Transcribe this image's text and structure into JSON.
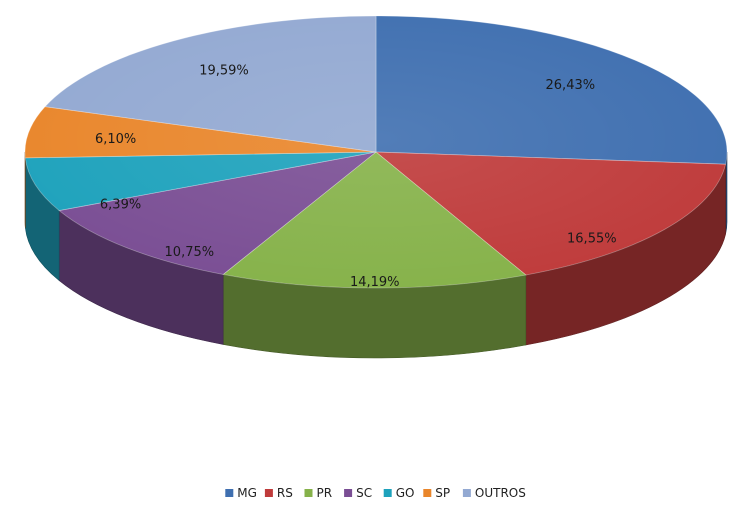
{
  "chart_data": {
    "type": "pie",
    "style": "3d",
    "categories": [
      "MG",
      "RS",
      "PR",
      "SC",
      "GO",
      "SP",
      "OUTROS"
    ],
    "values": [
      26.43,
      16.55,
      14.19,
      10.75,
      6.39,
      6.1,
      19.59
    ],
    "labels": [
      "26,43%",
      "16,55%",
      "14,19%",
      "10,75%",
      "6,39%",
      "6,10%",
      "19,59%"
    ],
    "colors": [
      "#3f6fb0",
      "#bf3b3b",
      "#86b24a",
      "#7a4e94",
      "#1ea2bc",
      "#e9862b",
      "#93a9d2"
    ],
    "legend_position": "bottom",
    "title": ""
  }
}
